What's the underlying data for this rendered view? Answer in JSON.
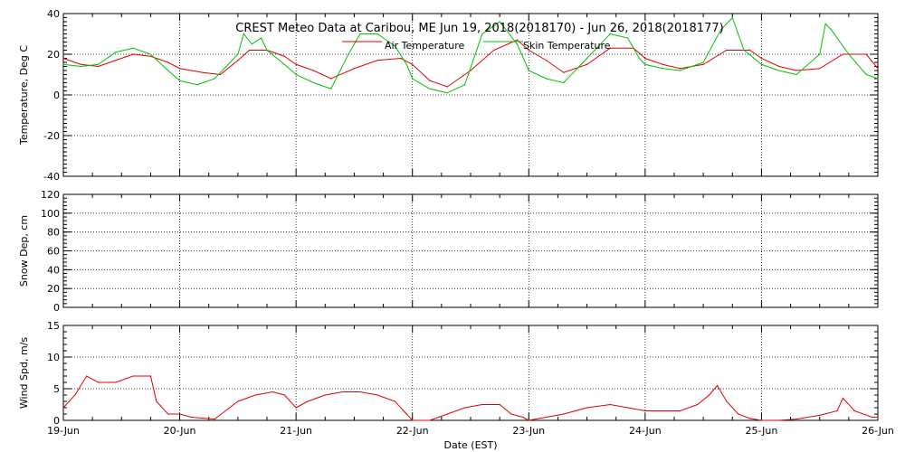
{
  "title": "CREST Meteo Data at Caribou, ME   Jun 19, 2018(2018170) - Jun 26, 2018(2018177)",
  "x_axis_label": "Date (EST)",
  "colors": {
    "air": "#e00000",
    "skin": "#00c000",
    "wind": "#e00000",
    "axis": "#000000"
  },
  "chart_data": [
    {
      "type": "line",
      "ylabel": "Temperature, Deg C",
      "ylim": [
        -40,
        40
      ],
      "yticks": [
        -40,
        -20,
        0,
        20,
        40
      ],
      "xlim": [
        "2018-06-19",
        "2018-06-26"
      ],
      "xtick_labels": [
        "19-Jun",
        "20-Jun",
        "21-Jun",
        "22-Jun",
        "23-Jun",
        "24-Jun",
        "25-Jun",
        "26-Jun"
      ],
      "grid": true,
      "legend": "top-center",
      "series": [
        {
          "name": "Air Temperature",
          "x_days": [
            0,
            0.15,
            0.3,
            0.45,
            0.6,
            0.75,
            0.9,
            1.0,
            1.2,
            1.35,
            1.5,
            1.6,
            1.75,
            1.9,
            2.0,
            2.15,
            2.3,
            2.5,
            2.7,
            2.9,
            3.0,
            3.15,
            3.3,
            3.5,
            3.7,
            3.9,
            4.0,
            4.15,
            4.3,
            4.5,
            4.7,
            4.9,
            5.0,
            5.15,
            5.3,
            5.5,
            5.7,
            5.9,
            6.0,
            6.15,
            6.3,
            6.5,
            6.7,
            6.9,
            7.0
          ],
          "values": [
            18,
            15,
            14,
            17,
            20,
            19,
            16,
            13,
            11,
            10,
            17,
            22,
            22,
            19,
            15,
            12,
            8,
            13,
            17,
            18,
            15,
            7,
            4,
            12,
            22,
            27,
            22,
            17,
            11,
            15,
            23,
            23,
            18,
            15,
            13,
            15,
            22,
            22,
            18,
            14,
            12,
            13,
            20,
            20,
            13
          ]
        },
        {
          "name": "Skin Temperature",
          "x_days": [
            0,
            0.15,
            0.3,
            0.45,
            0.6,
            0.75,
            0.9,
            1.0,
            1.15,
            1.3,
            1.5,
            1.55,
            1.62,
            1.7,
            1.75,
            1.9,
            2.0,
            2.15,
            2.3,
            2.45,
            2.55,
            2.7,
            2.85,
            2.95,
            3.0,
            3.15,
            3.3,
            3.45,
            3.6,
            3.75,
            3.9,
            4.0,
            4.15,
            4.3,
            4.5,
            4.7,
            4.85,
            4.95,
            5.0,
            5.15,
            5.3,
            5.5,
            5.65,
            5.75,
            5.85,
            6.0,
            6.15,
            6.3,
            6.5,
            6.55,
            6.6,
            6.75,
            6.9,
            7.0
          ],
          "values": [
            15,
            14,
            15,
            21,
            23,
            20,
            12,
            7,
            5,
            8,
            20,
            30,
            25,
            28,
            22,
            15,
            10,
            6,
            3,
            20,
            30,
            30,
            24,
            15,
            8,
            3,
            1,
            5,
            30,
            36,
            25,
            12,
            8,
            6,
            18,
            30,
            28,
            18,
            15,
            13,
            12,
            16,
            32,
            38,
            22,
            15,
            12,
            10,
            20,
            35,
            32,
            20,
            10,
            8
          ]
        }
      ]
    },
    {
      "type": "line",
      "ylabel": "Snow Dep, cm",
      "ylim": [
        0,
        120
      ],
      "yticks": [
        0,
        20,
        40,
        60,
        80,
        100,
        120
      ],
      "xlim": [
        "2018-06-19",
        "2018-06-26"
      ],
      "grid": true,
      "series": []
    },
    {
      "type": "line",
      "ylabel": "Wind Spd, m/s",
      "ylim": [
        0,
        15
      ],
      "yticks": [
        0,
        5,
        10,
        15
      ],
      "xlim": [
        "2018-06-19",
        "2018-06-26"
      ],
      "grid": true,
      "series": [
        {
          "x_days": [
            0,
            0.1,
            0.2,
            0.3,
            0.45,
            0.6,
            0.75,
            0.8,
            0.9,
            1.0,
            1.1,
            1.3,
            1.5,
            1.65,
            1.8,
            1.9,
            2.0,
            2.1,
            2.25,
            2.4,
            2.55,
            2.7,
            2.85,
            2.95,
            3.0,
            3.15,
            3.3,
            3.45,
            3.6,
            3.75,
            3.85,
            3.95,
            4.0,
            4.15,
            4.3,
            4.5,
            4.7,
            4.85,
            5.0,
            5.15,
            5.3,
            5.45,
            5.55,
            5.62,
            5.7,
            5.8,
            5.9,
            6.0,
            6.15,
            6.3,
            6.5,
            6.65,
            6.7,
            6.8,
            6.95,
            7.0
          ],
          "values": [
            2,
            4,
            7,
            6,
            6,
            7,
            7,
            3,
            1,
            1,
            0.5,
            0.2,
            3,
            4,
            4.5,
            4,
            2,
            3,
            4,
            4.5,
            4.5,
            4,
            3,
            1,
            0,
            0,
            1,
            2,
            2.5,
            2.5,
            1,
            0.5,
            0,
            0.5,
            1,
            2,
            2.5,
            2,
            1.5,
            1.5,
            1.5,
            2.5,
            4,
            5.5,
            3,
            1,
            0.3,
            0,
            0,
            0.2,
            0.8,
            1.5,
            3.5,
            1.5,
            0.5,
            0.5
          ]
        }
      ]
    }
  ]
}
